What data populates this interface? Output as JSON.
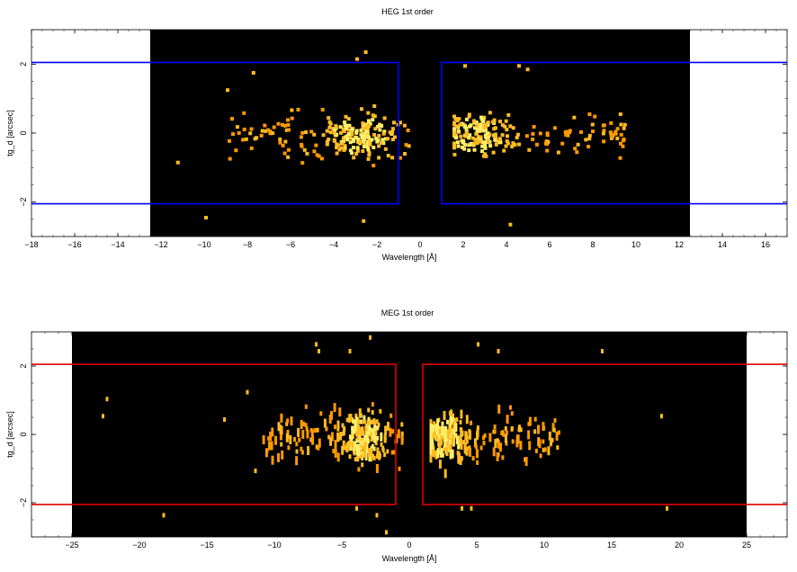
{
  "colors": {
    "background": "#000000",
    "heg_box": "#0000ff",
    "meg_box": "#dd0000",
    "pixel_dim": "#ff9900",
    "pixel_mid": "#ffbb22",
    "pixel_bright": "#ffee66"
  },
  "chart_data": [
    {
      "id": "heg",
      "type": "heatmap",
      "title": "HEG 1st order",
      "xlabel": "Wavelength [Å]",
      "ylabel": "tg_d [arcsec]",
      "xlim": [
        -18,
        17
      ],
      "ylim": [
        -3,
        3
      ],
      "xticks": [
        -18,
        -16,
        -14,
        -12,
        -10,
        -8,
        -6,
        -4,
        -2,
        0,
        2,
        4,
        6,
        8,
        10,
        12,
        14,
        16
      ],
      "yticks": [
        -2,
        0,
        2
      ],
      "background_region": [
        -12.5,
        12.5
      ],
      "extraction_regions": [
        {
          "x": [
            -1.0,
            -12.5
          ],
          "y": [
            -2.05,
            2.05
          ],
          "extends_to": -18
        },
        {
          "x": [
            1.0,
            12.5
          ],
          "y": [
            -2.05,
            2.05
          ],
          "extends_to": 17
        }
      ],
      "event_clusters": [
        {
          "x_range": [
            -9,
            -0.5
          ],
          "y_sigma": 0.45,
          "peak_x": -2.8,
          "density": "high",
          "count": 240
        },
        {
          "x_range": [
            1.5,
            9.5
          ],
          "y_sigma": 0.4,
          "peak_x": 2.6,
          "density": "high",
          "count": 230
        }
      ],
      "outliers": [
        [
          -11.3,
          -0.8
        ],
        [
          -10.0,
          -2.4
        ],
        [
          -9.0,
          1.3
        ],
        [
          -7.8,
          1.8
        ],
        [
          -3.0,
          2.2
        ],
        [
          -2.6,
          2.4
        ],
        [
          -2.7,
          -2.5
        ],
        [
          2.0,
          2.0
        ],
        [
          4.1,
          -2.6
        ],
        [
          4.9,
          1.9
        ],
        [
          4.5,
          2.0
        ],
        [
          9.2,
          0.6
        ]
      ]
    },
    {
      "id": "meg",
      "type": "heatmap",
      "title": "MEG 1st order",
      "xlabel": "Wavelength [Å]",
      "ylabel": "tg_d [arcsec]",
      "xlim": [
        -28,
        28
      ],
      "ylim": [
        -3,
        3
      ],
      "xticks": [
        -25,
        -20,
        -15,
        -10,
        -5,
        0,
        5,
        10,
        15,
        20,
        25
      ],
      "yticks": [
        -2,
        0,
        2
      ],
      "background_region": [
        -25,
        25
      ],
      "extraction_regions": [
        {
          "x": [
            -1.0,
            -25
          ],
          "y": [
            -2.05,
            2.05
          ],
          "extends_to": -28
        },
        {
          "x": [
            1.0,
            25
          ],
          "y": [
            -2.05,
            2.05
          ],
          "extends_to": 28
        }
      ],
      "event_clusters": [
        {
          "x_range": [
            -11,
            -0.5
          ],
          "y_sigma": 0.5,
          "peak_x": -3.5,
          "density": "high",
          "count": 260
        },
        {
          "x_range": [
            1.5,
            11
          ],
          "y_sigma": 0.45,
          "peak_x": 2.5,
          "density": "high",
          "count": 250
        }
      ],
      "outliers": [
        [
          -22.5,
          1.1
        ],
        [
          -22.8,
          0.6
        ],
        [
          -18.3,
          -2.3
        ],
        [
          -12.1,
          1.3
        ],
        [
          -13.8,
          0.5
        ],
        [
          -11.5,
          -1.0
        ],
        [
          -7.0,
          2.7
        ],
        [
          -6.8,
          2.5
        ],
        [
          -4.5,
          2.5
        ],
        [
          -3.0,
          2.9
        ],
        [
          -4.0,
          -2.1
        ],
        [
          -2.5,
          -2.3
        ],
        [
          -1.8,
          -2.8
        ],
        [
          5.0,
          2.7
        ],
        [
          6.5,
          2.5
        ],
        [
          14.2,
          2.5
        ],
        [
          18.6,
          0.6
        ],
        [
          19.0,
          -2.1
        ],
        [
          3.8,
          -2.1
        ],
        [
          4.5,
          -2.1
        ]
      ]
    }
  ]
}
